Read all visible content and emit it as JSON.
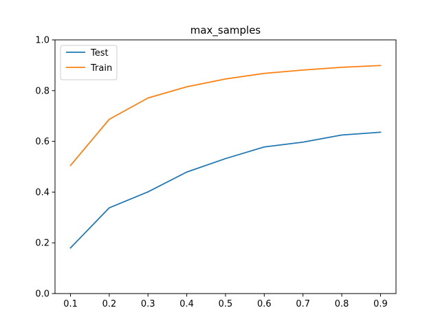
{
  "chart_data": {
    "type": "line",
    "title": "max_samples",
    "xlabel": "",
    "ylabel": "",
    "x": [
      0.1,
      0.2,
      0.3,
      0.4,
      0.5,
      0.6,
      0.7,
      0.8,
      0.9
    ],
    "xticks": [
      "0.1",
      "0.2",
      "0.3",
      "0.4",
      "0.5",
      "0.6",
      "0.7",
      "0.8",
      "0.9"
    ],
    "yticks": [
      "0.0",
      "0.2",
      "0.4",
      "0.6",
      "0.8",
      "1.0"
    ],
    "xlim": [
      0.06,
      0.94
    ],
    "ylim": [
      0.0,
      1.0
    ],
    "grid": false,
    "legend_position": "upper-left",
    "series": [
      {
        "name": "Test",
        "color": "#1f77b4",
        "values": [
          0.18,
          0.338,
          0.401,
          0.479,
          0.532,
          0.578,
          0.597,
          0.625,
          0.636
        ]
      },
      {
        "name": "Train",
        "color": "#ff7f0e",
        "values": [
          0.505,
          0.687,
          0.771,
          0.815,
          0.846,
          0.868,
          0.881,
          0.892,
          0.899
        ]
      }
    ]
  }
}
